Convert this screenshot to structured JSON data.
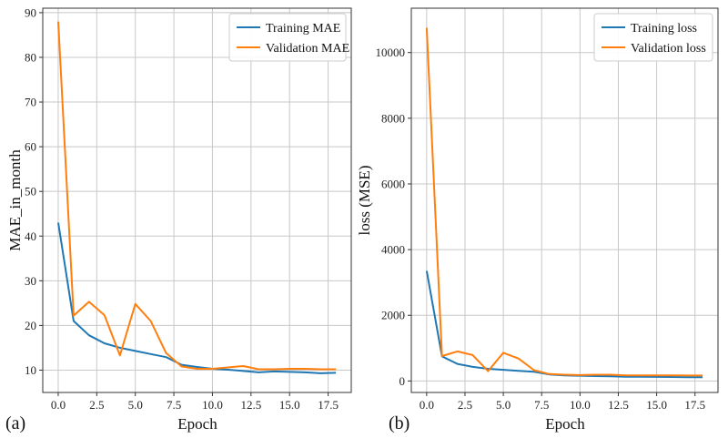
{
  "colors": {
    "training": "#1f77b4",
    "validation": "#ff7f0e",
    "grid": "#c8c8c8"
  },
  "chart_data": [
    {
      "type": "line",
      "panel_label": "(a)",
      "xlabel": "Epoch",
      "ylabel": "MAE_in_month",
      "xlim": [
        -1,
        19
      ],
      "ylim": [
        5,
        91
      ],
      "xticks": [
        0,
        2.5,
        5,
        7.5,
        10,
        12.5,
        15,
        17.5
      ],
      "xtick_labels": [
        "0.0",
        "2.5",
        "5.0",
        "7.5",
        "10.0",
        "12.5",
        "15.0",
        "17.5"
      ],
      "yticks": [
        10,
        20,
        30,
        40,
        50,
        60,
        70,
        80,
        90
      ],
      "ytick_labels": [
        "10",
        "20",
        "30",
        "40",
        "50",
        "60",
        "70",
        "80",
        "90"
      ],
      "legend": "top-right",
      "x": [
        0,
        1,
        2,
        3,
        4,
        5,
        6,
        7,
        8,
        9,
        10,
        11,
        12,
        13,
        14,
        15,
        16,
        17,
        18
      ],
      "series": [
        {
          "name": "Training MAE",
          "color_key": "training",
          "values": [
            43,
            21,
            17.8,
            16,
            15,
            14.3,
            13.6,
            12.9,
            11.2,
            10.7,
            10.3,
            10.1,
            9.8,
            9.5,
            9.7,
            9.6,
            9.5,
            9.3,
            9.4
          ]
        },
        {
          "name": "Validation MAE",
          "color_key": "validation",
          "values": [
            88,
            22.2,
            25.3,
            22.3,
            13.3,
            24.8,
            21,
            13.8,
            10.8,
            10.3,
            10.3,
            10.6,
            10.9,
            10.2,
            10.2,
            10.3,
            10.3,
            10.2,
            10.2
          ]
        }
      ]
    },
    {
      "type": "line",
      "panel_label": "(b)",
      "xlabel": "Epoch",
      "ylabel": "loss (MSE)",
      "xlim": [
        -1,
        19
      ],
      "ylim": [
        -350,
        11350
      ],
      "xticks": [
        0,
        2.5,
        5,
        7.5,
        10,
        12.5,
        15,
        17.5
      ],
      "xtick_labels": [
        "0.0",
        "2.5",
        "5.0",
        "7.5",
        "10.0",
        "12.5",
        "15.0",
        "17.5"
      ],
      "yticks": [
        0,
        2000,
        4000,
        6000,
        8000,
        10000
      ],
      "ytick_labels": [
        "0",
        "2000",
        "4000",
        "6000",
        "8000",
        "10000"
      ],
      "legend": "top-right",
      "x": [
        0,
        1,
        2,
        3,
        4,
        5,
        6,
        7,
        8,
        9,
        10,
        11,
        12,
        13,
        14,
        15,
        16,
        17,
        18
      ],
      "series": [
        {
          "name": "Training loss",
          "color_key": "training",
          "values": [
            3350,
            750,
            520,
            430,
            370,
            340,
            310,
            280,
            200,
            170,
            160,
            150,
            140,
            130,
            130,
            125,
            120,
            115,
            115
          ]
        },
        {
          "name": "Validation loss",
          "color_key": "validation",
          "values": [
            10750,
            760,
            900,
            790,
            300,
            860,
            680,
            330,
            210,
            190,
            180,
            190,
            190,
            170,
            170,
            170,
            170,
            165,
            165
          ]
        }
      ]
    }
  ]
}
